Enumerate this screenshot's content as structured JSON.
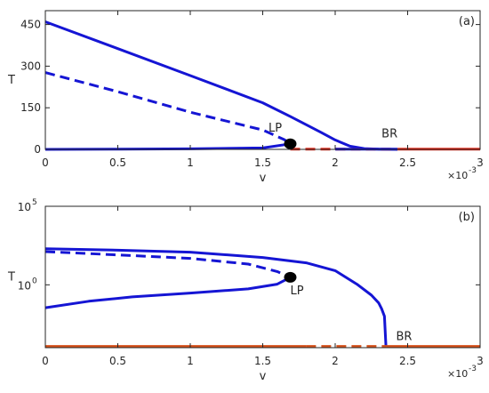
{
  "chart_data": [
    {
      "type": "line",
      "panel_label": "(a)",
      "xlabel": "v",
      "ylabel": "T",
      "x_multiplier": "×10",
      "x_multiplier_exponent": "-3",
      "xlim": [
        0,
        3
      ],
      "ylim": [
        0,
        500
      ],
      "yscale": "linear",
      "x_ticks": [
        0,
        0.5,
        1,
        1.5,
        2,
        2.5,
        3
      ],
      "x_tick_labels": [
        "0",
        "0.5",
        "1",
        "1.5",
        "2",
        "2.5",
        "3"
      ],
      "y_ticks": [
        0,
        150,
        300,
        450
      ],
      "y_tick_labels": [
        "0",
        "150",
        "300",
        "450"
      ],
      "grid": false,
      "annotations": [
        {
          "text": "LP",
          "x": 1.54,
          "y": 64
        },
        {
          "text": "BR",
          "x": 2.32,
          "y": 44
        }
      ],
      "markers": [
        {
          "x": 1.69,
          "y": 20
        }
      ],
      "series": [
        {
          "style": "solid",
          "color": "#1515d4",
          "points": [
            [
              0,
              460
            ],
            [
              0.5,
              363
            ],
            [
              1,
              266
            ],
            [
              1.5,
              168
            ],
            [
              1.7,
              116
            ],
            [
              1.9,
              62
            ],
            [
              2.0,
              34
            ],
            [
              2.1,
              12
            ],
            [
              2.2,
              3
            ],
            [
              2.3,
              1
            ],
            [
              2.43,
              0
            ]
          ]
        },
        {
          "style": "dashed",
          "color": "#1515d4",
          "points": [
            [
              0,
              277
            ],
            [
              0.5,
              208
            ],
            [
              1,
              134
            ],
            [
              1.5,
              70
            ],
            [
              1.65,
              35
            ],
            [
              1.69,
              20
            ]
          ]
        },
        {
          "style": "solid",
          "color": "#1515d4",
          "points": [
            [
              0,
              0
            ],
            [
              0.5,
              1
            ],
            [
              1,
              2
            ],
            [
              1.5,
              5
            ],
            [
              1.69,
              20
            ]
          ]
        },
        {
          "style": "dashed",
          "color": "#e52a1a",
          "points": [
            [
              1.69,
              1
            ],
            [
              2.4,
              1
            ]
          ]
        },
        {
          "style": "solid",
          "color": "#1515d4",
          "points": [
            [
              2.0,
              1
            ],
            [
              2.43,
              1
            ]
          ]
        },
        {
          "style": "solid",
          "color": "#e52a1a",
          "points": [
            [
              2.43,
              1
            ],
            [
              3,
              1
            ]
          ]
        }
      ]
    },
    {
      "type": "line",
      "panel_label": "(b)",
      "xlabel": "v",
      "ylabel": "T",
      "x_multiplier": "×10",
      "x_multiplier_exponent": "-3",
      "xlim": [
        0,
        3
      ],
      "ylim": [
        0.0001,
        100000
      ],
      "yscale": "log",
      "x_ticks": [
        0,
        0.5,
        1,
        1.5,
        2,
        2.5,
        3
      ],
      "x_tick_labels": [
        "0",
        "0.5",
        "1",
        "1.5",
        "2",
        "2.5",
        "3"
      ],
      "y_ticks": [
        1,
        100000
      ],
      "y_tick_labels": [
        {
          "base": "10",
          "exp": "0"
        },
        {
          "base": "10",
          "exp": "5"
        }
      ],
      "grid": false,
      "annotations": [
        {
          "text": "LP",
          "x": 1.69,
          "y": 0.25
        },
        {
          "text": "BR",
          "x": 2.42,
          "y": 0.0003
        }
      ],
      "markers": [
        {
          "x": 1.69,
          "y": 3
        }
      ],
      "series": [
        {
          "style": "solid",
          "color": "#1515d4",
          "points": [
            [
              0,
              200
            ],
            [
              0.5,
              160
            ],
            [
              1,
              120
            ],
            [
              1.5,
              55
            ],
            [
              1.8,
              25
            ],
            [
              2.0,
              8
            ],
            [
              2.15,
              1.1
            ],
            [
              2.25,
              0.22
            ],
            [
              2.3,
              0.07
            ],
            [
              2.32,
              0.03
            ],
            [
              2.34,
              0.01
            ],
            [
              2.35,
              0.00012
            ]
          ]
        },
        {
          "style": "dashed",
          "color": "#1515d4",
          "points": [
            [
              0,
              130
            ],
            [
              0.5,
              80
            ],
            [
              1,
              48
            ],
            [
              1.4,
              21
            ],
            [
              1.6,
              7
            ],
            [
              1.69,
              3
            ]
          ]
        },
        {
          "style": "solid",
          "color": "#1515d4",
          "points": [
            [
              0,
              0.035
            ],
            [
              0.3,
              0.09
            ],
            [
              0.6,
              0.17
            ],
            [
              1,
              0.3
            ],
            [
              1.4,
              0.55
            ],
            [
              1.6,
              1.1
            ],
            [
              1.69,
              3
            ]
          ]
        },
        {
          "style": "solid",
          "color": "#d4501a",
          "points": [
            [
              0,
              0.00012
            ],
            [
              1.8,
              0.00012
            ]
          ]
        },
        {
          "style": "dashed",
          "color": "#d4501a",
          "points": [
            [
              1.8,
              0.00012
            ],
            [
              2.35,
              0.00012
            ]
          ]
        },
        {
          "style": "solid",
          "color": "#d4501a",
          "points": [
            [
              2.35,
              0.00012
            ],
            [
              3,
              0.00012
            ]
          ]
        }
      ]
    }
  ]
}
